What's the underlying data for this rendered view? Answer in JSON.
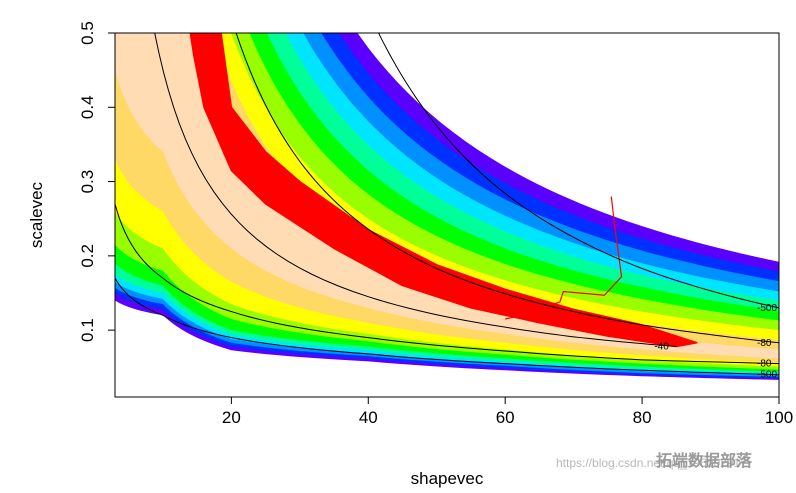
{
  "chart_data": {
    "type": "contour",
    "xlabel": "shapevec",
    "ylabel": "scalevec",
    "xlim": [
      3,
      100
    ],
    "ylim": [
      0.01,
      0.5
    ],
    "xticks": [
      20,
      40,
      60,
      80,
      100
    ],
    "yticks": [
      0.1,
      0.2,
      0.3,
      0.4,
      0.5
    ],
    "band_x": [
      3,
      10,
      20,
      40,
      60,
      80,
      100
    ],
    "bands": [
      {
        "color": "#5a00ff",
        "upper": [
          6.4,
          1.92,
          0.96,
          0.48,
          0.32,
          0.24,
          0.192
        ],
        "lower": [
          0.14,
          0.12,
          0.073,
          0.058,
          0.046,
          0.038,
          0.033
        ]
      },
      {
        "color": "#0030ff",
        "upper": [
          5.95,
          1.786,
          0.893,
          0.446,
          0.298,
          0.223,
          0.179
        ],
        "lower": [
          0.15,
          0.128,
          0.078,
          0.062,
          0.049,
          0.04,
          0.035
        ]
      },
      {
        "color": "#0090ff",
        "upper": [
          5.52,
          1.658,
          0.829,
          0.414,
          0.276,
          0.207,
          0.166
        ],
        "lower": [
          0.157,
          0.135,
          0.083,
          0.065,
          0.052,
          0.042,
          0.037
        ]
      },
      {
        "color": "#00e5ff",
        "upper": [
          5.08,
          1.523,
          0.762,
          0.381,
          0.254,
          0.19,
          0.152
        ],
        "lower": [
          0.165,
          0.142,
          0.088,
          0.069,
          0.055,
          0.045,
          0.039
        ]
      },
      {
        "color": "#00ff99",
        "upper": [
          4.65,
          1.395,
          0.698,
          0.349,
          0.233,
          0.174,
          0.14
        ],
        "lower": [
          0.175,
          0.15,
          0.094,
          0.073,
          0.058,
          0.048,
          0.042
        ]
      },
      {
        "color": "#00ff00",
        "upper": [
          4.2,
          1.261,
          0.63,
          0.315,
          0.21,
          0.158,
          0.126
        ],
        "lower": [
          0.19,
          0.16,
          0.1,
          0.078,
          0.062,
          0.051,
          0.044
        ]
      },
      {
        "color": "#99ff00",
        "upper": [
          3.78,
          1.133,
          0.566,
          0.283,
          0.189,
          0.142,
          0.113
        ],
        "lower": [
          0.215,
          0.18,
          0.115,
          0.085,
          0.067,
          0.055,
          0.047
        ]
      },
      {
        "color": "#ffff00",
        "upper": [
          3.33,
          0.998,
          0.499,
          0.25,
          0.167,
          0.125,
          0.1
        ],
        "lower": [
          0.26,
          0.21,
          0.135,
          0.095,
          0.074,
          0.06,
          0.051
        ]
      },
      {
        "color": "#ffd966",
        "upper": [
          2.9,
          0.87,
          0.435,
          0.218,
          0.145,
          0.109,
          0.087
        ],
        "lower": [
          0.33,
          0.26,
          0.165,
          0.11,
          0.083,
          0.066,
          0.056
        ]
      },
      {
        "color": "#ffdcb4",
        "upper": [
          2.45,
          0.736,
          0.368,
          0.184,
          0.123,
          0.092,
          0.074
        ],
        "lower": [
          0.45,
          0.34,
          0.21,
          0.13,
          0.095,
          0.074,
          0.062
        ]
      }
    ],
    "contours": [
      {
        "level": -500,
        "x": [
          41.5,
          50,
          60,
          70,
          80,
          90,
          100
        ],
        "y": [
          0.5,
          0.375,
          0.284,
          0.225,
          0.183,
          0.153,
          0.13
        ]
      },
      {
        "level": -80,
        "x": [
          20.7,
          30,
          40,
          50,
          60,
          70,
          80,
          90,
          100
        ],
        "y": [
          0.5,
          0.327,
          0.236,
          0.183,
          0.149,
          0.125,
          0.107,
          0.094,
          0.083
        ]
      },
      {
        "level": -40,
        "x": [
          8.8,
          20,
          40,
          60,
          70,
          85
        ],
        "y": [
          0.5,
          0.256,
          0.145,
          0.104,
          0.091,
          0.078
        ]
      },
      {
        "level": -80,
        "x": [
          3,
          10,
          20,
          40,
          60,
          80,
          100
        ],
        "y": [
          0.27,
          0.17,
          0.125,
          0.09,
          0.072,
          0.06,
          0.055
        ]
      },
      {
        "level": -500,
        "x": [
          3,
          10,
          20,
          40,
          60,
          80,
          100
        ],
        "y": [
          0.17,
          0.12,
          0.09,
          0.068,
          0.055,
          0.046,
          0.04
        ]
      }
    ],
    "trace": {
      "color": "#ff0000",
      "x": [
        14,
        18.5,
        20,
        25,
        30,
        40,
        50,
        60,
        70,
        80,
        88,
        85,
        75,
        65,
        55,
        45,
        35,
        30,
        25,
        20,
        16,
        14.5
      ],
      "y": [
        0.5,
        0.5,
        0.4,
        0.34,
        0.3,
        0.235,
        0.188,
        0.155,
        0.128,
        0.107,
        0.083,
        0.078,
        0.092,
        0.11,
        0.13,
        0.16,
        0.21,
        0.24,
        0.27,
        0.315,
        0.4,
        0.47
      ]
    },
    "burnin": {
      "color": "#ff0000",
      "x": [
        75.5,
        76,
        77,
        74.5,
        68.5,
        68,
        62.5,
        60
      ],
      "y": [
        0.28,
        0.24,
        0.172,
        0.147,
        0.152,
        0.138,
        0.12,
        0.115
      ]
    }
  },
  "watermark": {
    "url": "https://blog.csdn.net/qq_19600291",
    "brand": "拓端数据部落"
  }
}
